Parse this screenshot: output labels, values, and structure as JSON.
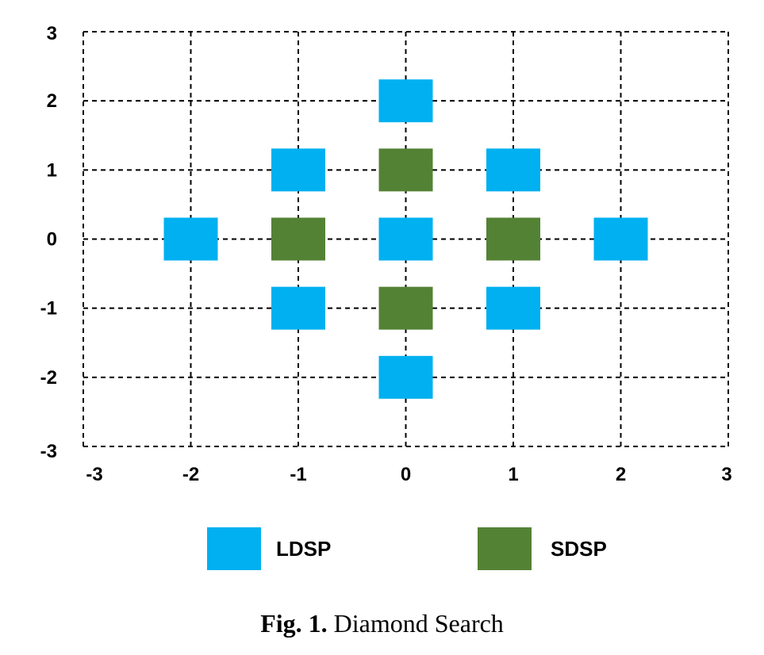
{
  "caption": {
    "prefix": "Fig. 1.",
    "text": "Diamond Search"
  },
  "chart_data": {
    "type": "scatter",
    "xlim": [
      -3,
      3
    ],
    "ylim": [
      -3,
      3
    ],
    "x_ticks": [
      "-3",
      "-2",
      "-1",
      "0",
      "1",
      "2",
      "3"
    ],
    "y_ticks": [
      "3",
      "2",
      "1",
      "0",
      "-1",
      "-2",
      "-3"
    ],
    "grid": true,
    "grid_style": "dashed",
    "legend_placement": "bottom",
    "series": [
      {
        "name": "LDSP",
        "color": "#00B0F0",
        "marker": "square",
        "points": [
          {
            "x": 0,
            "y": 2
          },
          {
            "x": -1,
            "y": 1
          },
          {
            "x": 1,
            "y": 1
          },
          {
            "x": -2,
            "y": 0
          },
          {
            "x": 0,
            "y": 0
          },
          {
            "x": 2,
            "y": 0
          },
          {
            "x": -1,
            "y": -1
          },
          {
            "x": 1,
            "y": -1
          },
          {
            "x": 0,
            "y": -2
          }
        ]
      },
      {
        "name": "SDSP",
        "color": "#548235",
        "marker": "square",
        "points": [
          {
            "x": 0,
            "y": 1
          },
          {
            "x": -1,
            "y": 0
          },
          {
            "x": 1,
            "y": 0
          },
          {
            "x": 0,
            "y": -1
          }
        ]
      }
    ]
  }
}
